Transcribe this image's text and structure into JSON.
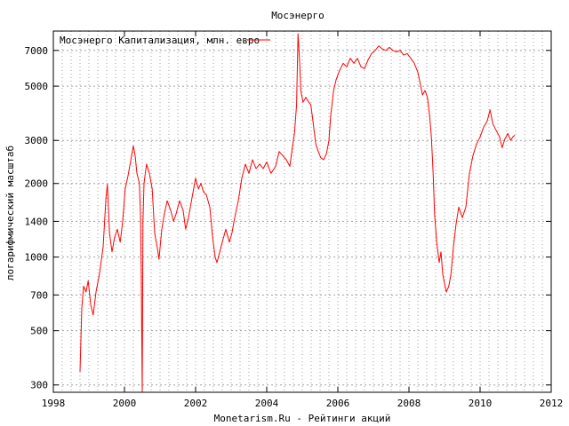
{
  "chart_data": {
    "type": "line",
    "title": "Мосэнерго",
    "xlabel": "Monetarism.Ru - Рейтинги акций",
    "ylabel": "логарифмический масштаб",
    "yscale": "log",
    "xlim": [
      1998,
      2012
    ],
    "ylim": [
      280,
      8400
    ],
    "x_ticks": [
      1998,
      2000,
      2002,
      2004,
      2006,
      2008,
      2010,
      2012
    ],
    "y_ticks": [
      300,
      500,
      700,
      1000,
      1400,
      2000,
      3000,
      5000,
      7000
    ],
    "grid": true,
    "grid_style": "dotted",
    "legend_position": "top-left",
    "series": [
      {
        "name": "Мосэнерго Капитализация, млн. евро",
        "color": "#ff0000",
        "points": [
          [
            1998.75,
            340
          ],
          [
            1998.8,
            620
          ],
          [
            1998.85,
            760
          ],
          [
            1998.92,
            720
          ],
          [
            1998.98,
            800
          ],
          [
            1999.05,
            640
          ],
          [
            1999.12,
            580
          ],
          [
            1999.2,
            720
          ],
          [
            1999.3,
            860
          ],
          [
            1999.4,
            1100
          ],
          [
            1999.48,
            1750
          ],
          [
            1999.52,
            1980
          ],
          [
            1999.58,
            1250
          ],
          [
            1999.65,
            1050
          ],
          [
            1999.72,
            1200
          ],
          [
            1999.8,
            1300
          ],
          [
            1999.88,
            1150
          ],
          [
            1999.95,
            1400
          ],
          [
            2000.02,
            1900
          ],
          [
            2000.1,
            2150
          ],
          [
            2000.18,
            2500
          ],
          [
            2000.25,
            2850
          ],
          [
            2000.3,
            2600
          ],
          [
            2000.35,
            2200
          ],
          [
            2000.42,
            2000
          ],
          [
            2000.45,
            1500
          ],
          [
            2000.47,
            900
          ],
          [
            2000.5,
            270
          ],
          [
            2000.52,
            1400
          ],
          [
            2000.55,
            2000
          ],
          [
            2000.62,
            2400
          ],
          [
            2000.7,
            2200
          ],
          [
            2000.78,
            1900
          ],
          [
            2000.85,
            1250
          ],
          [
            2000.92,
            1100
          ],
          [
            2000.97,
            980
          ],
          [
            2001.05,
            1300
          ],
          [
            2001.12,
            1500
          ],
          [
            2001.2,
            1700
          ],
          [
            2001.3,
            1550
          ],
          [
            2001.38,
            1400
          ],
          [
            2001.45,
            1500
          ],
          [
            2001.55,
            1700
          ],
          [
            2001.65,
            1550
          ],
          [
            2001.72,
            1300
          ],
          [
            2001.8,
            1450
          ],
          [
            2001.9,
            1750
          ],
          [
            2002.0,
            2100
          ],
          [
            2002.08,
            1900
          ],
          [
            2002.15,
            2000
          ],
          [
            2002.22,
            1850
          ],
          [
            2002.3,
            1800
          ],
          [
            2002.4,
            1600
          ],
          [
            2002.48,
            1200
          ],
          [
            2002.55,
            1000
          ],
          [
            2002.6,
            950
          ],
          [
            2002.68,
            1050
          ],
          [
            2002.75,
            1150
          ],
          [
            2002.85,
            1300
          ],
          [
            2002.95,
            1150
          ],
          [
            2003.02,
            1250
          ],
          [
            2003.1,
            1450
          ],
          [
            2003.2,
            1700
          ],
          [
            2003.3,
            2100
          ],
          [
            2003.4,
            2400
          ],
          [
            2003.5,
            2200
          ],
          [
            2003.6,
            2500
          ],
          [
            2003.7,
            2300
          ],
          [
            2003.8,
            2400
          ],
          [
            2003.9,
            2300
          ],
          [
            2004.0,
            2450
          ],
          [
            2004.12,
            2200
          ],
          [
            2004.25,
            2350
          ],
          [
            2004.35,
            2700
          ],
          [
            2004.45,
            2600
          ],
          [
            2004.55,
            2500
          ],
          [
            2004.65,
            2350
          ],
          [
            2004.72,
            2800
          ],
          [
            2004.78,
            3200
          ],
          [
            2004.84,
            4200
          ],
          [
            2004.88,
            8200
          ],
          [
            2004.92,
            6500
          ],
          [
            2004.96,
            4800
          ],
          [
            2005.02,
            4300
          ],
          [
            2005.1,
            4500
          ],
          [
            2005.18,
            4300
          ],
          [
            2005.24,
            4200
          ],
          [
            2005.3,
            3600
          ],
          [
            2005.38,
            2900
          ],
          [
            2005.45,
            2700
          ],
          [
            2005.52,
            2550
          ],
          [
            2005.6,
            2500
          ],
          [
            2005.68,
            2650
          ],
          [
            2005.75,
            3000
          ],
          [
            2005.8,
            3800
          ],
          [
            2005.88,
            4800
          ],
          [
            2005.95,
            5300
          ],
          [
            2006.05,
            5800
          ],
          [
            2006.15,
            6200
          ],
          [
            2006.25,
            6000
          ],
          [
            2006.35,
            6500
          ],
          [
            2006.45,
            6200
          ],
          [
            2006.55,
            6500
          ],
          [
            2006.65,
            6000
          ],
          [
            2006.75,
            5900
          ],
          [
            2006.85,
            6400
          ],
          [
            2006.95,
            6800
          ],
          [
            2007.05,
            7000
          ],
          [
            2007.15,
            7300
          ],
          [
            2007.25,
            7100
          ],
          [
            2007.35,
            7000
          ],
          [
            2007.45,
            7200
          ],
          [
            2007.55,
            7000
          ],
          [
            2007.65,
            6900
          ],
          [
            2007.75,
            7000
          ],
          [
            2007.85,
            6700
          ],
          [
            2007.95,
            6800
          ],
          [
            2008.05,
            6500
          ],
          [
            2008.15,
            6200
          ],
          [
            2008.25,
            5700
          ],
          [
            2008.32,
            5100
          ],
          [
            2008.38,
            4600
          ],
          [
            2008.45,
            4800
          ],
          [
            2008.52,
            4500
          ],
          [
            2008.58,
            3800
          ],
          [
            2008.63,
            3100
          ],
          [
            2008.68,
            2200
          ],
          [
            2008.72,
            1500
          ],
          [
            2008.78,
            1150
          ],
          [
            2008.85,
            950
          ],
          [
            2008.9,
            1050
          ],
          [
            2008.95,
            850
          ],
          [
            2009.0,
            780
          ],
          [
            2009.05,
            720
          ],
          [
            2009.12,
            760
          ],
          [
            2009.18,
            850
          ],
          [
            2009.25,
            1100
          ],
          [
            2009.32,
            1350
          ],
          [
            2009.4,
            1600
          ],
          [
            2009.5,
            1450
          ],
          [
            2009.6,
            1600
          ],
          [
            2009.7,
            2200
          ],
          [
            2009.8,
            2600
          ],
          [
            2009.9,
            2900
          ],
          [
            2010.0,
            3100
          ],
          [
            2010.1,
            3400
          ],
          [
            2010.2,
            3600
          ],
          [
            2010.28,
            4000
          ],
          [
            2010.36,
            3500
          ],
          [
            2010.45,
            3300
          ],
          [
            2010.55,
            3100
          ],
          [
            2010.62,
            2800
          ],
          [
            2010.7,
            3050
          ],
          [
            2010.78,
            3200
          ],
          [
            2010.86,
            3000
          ],
          [
            2010.92,
            3100
          ],
          [
            2010.98,
            3150
          ]
        ]
      }
    ]
  }
}
